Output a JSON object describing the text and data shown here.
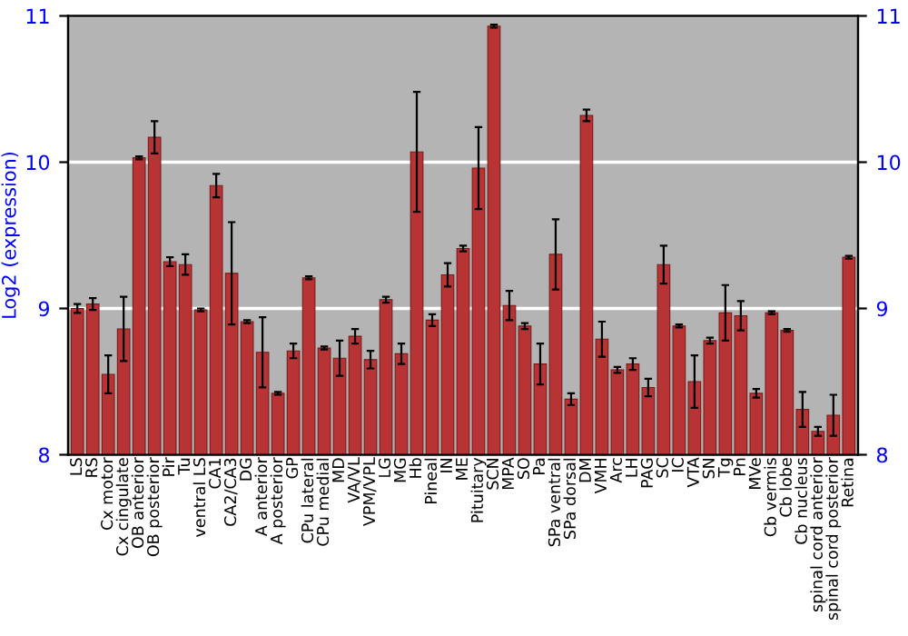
{
  "chart_data": {
    "type": "bar",
    "ylabel": "Log2 (expression)",
    "categories": [
      "LS",
      "RS",
      "Cx motor",
      "Cx cingulate",
      "OB anterior",
      "OB posterior",
      "Pir",
      "Tu",
      "ventral LS",
      "CA1",
      "CA2/CA3",
      "DG",
      "A anterior",
      "A posterior",
      "GP",
      "CPu lateral",
      "CPu medial",
      "MD",
      "VA/VL",
      "VPM/VPL",
      "LG",
      "MG",
      "Hb",
      "Pineal",
      "IN",
      "ME",
      "Pituitary",
      "SCN",
      "MPA",
      "SO",
      "Pa",
      "SPa ventral",
      "SPa dorsal",
      "DM",
      "VMH",
      "Arc",
      "LH",
      "PAG",
      "SC",
      "IC",
      "VTA",
      "SN",
      "Tg",
      "Pn",
      "MVe",
      "Cb vermis",
      "Cb lobe",
      "Cb nucleus",
      "spinal cord anterior",
      "spinal cord posterior",
      "Retina"
    ],
    "values": [
      9.0,
      9.03,
      8.55,
      8.86,
      10.03,
      10.17,
      9.32,
      9.3,
      8.99,
      9.84,
      9.24,
      8.91,
      8.7,
      8.42,
      8.71,
      9.21,
      8.73,
      8.66,
      8.81,
      8.65,
      9.06,
      8.69,
      10.07,
      8.92,
      9.23,
      9.41,
      9.96,
      10.93,
      9.02,
      8.88,
      8.62,
      9.37,
      8.38,
      10.32,
      8.79,
      8.58,
      8.62,
      8.46,
      9.3,
      8.88,
      8.5,
      8.78,
      8.97,
      8.95,
      8.42,
      8.97,
      8.85,
      8.31,
      8.16,
      8.27,
      9.35
    ],
    "errors": [
      0.03,
      0.04,
      0.13,
      0.22,
      0.01,
      0.11,
      0.03,
      0.07,
      0.01,
      0.08,
      0.35,
      0.01,
      0.24,
      0.01,
      0.05,
      0.01,
      0.01,
      0.12,
      0.05,
      0.06,
      0.02,
      0.07,
      0.41,
      0.04,
      0.08,
      0.02,
      0.28,
      0.01,
      0.1,
      0.02,
      0.14,
      0.24,
      0.04,
      0.04,
      0.12,
      0.02,
      0.04,
      0.06,
      0.13,
      0.01,
      0.18,
      0.02,
      0.19,
      0.1,
      0.03,
      0.01,
      0.01,
      0.12,
      0.03,
      0.14,
      0.01
    ],
    "color": "#b83434",
    "ylim": [
      8,
      11
    ],
    "yticks": [
      8,
      9,
      10,
      11
    ],
    "y2lim": [
      8,
      11
    ],
    "y2ticks": [
      8,
      9,
      10,
      11
    ],
    "grid": "y"
  }
}
